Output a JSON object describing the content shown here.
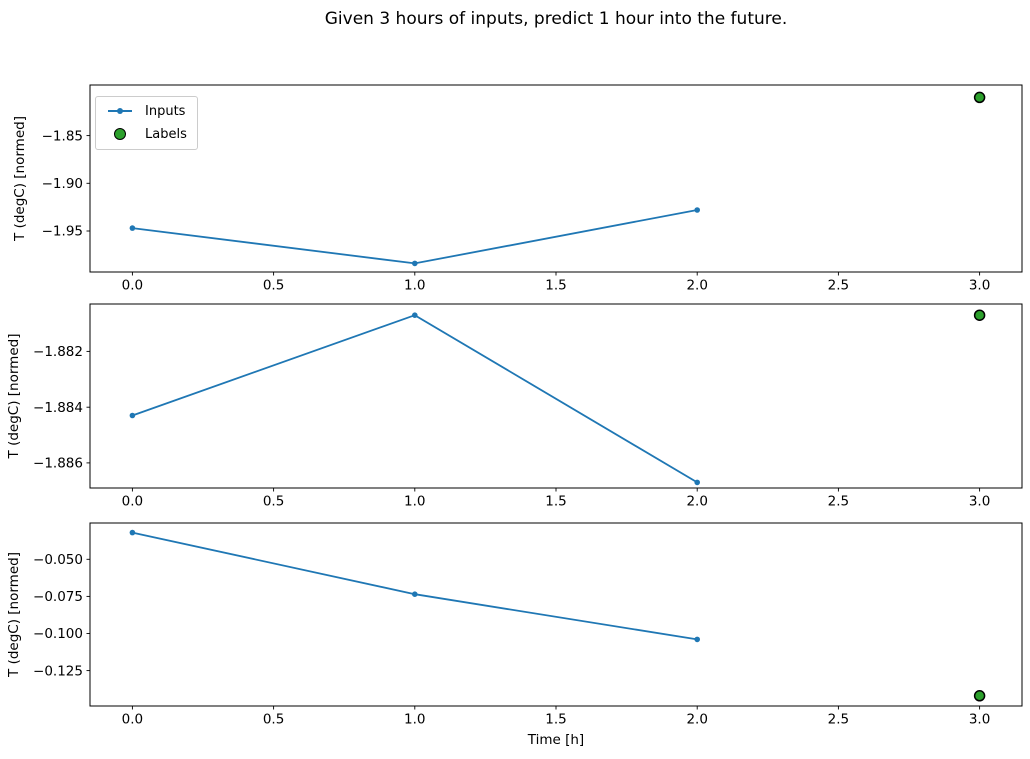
{
  "figure": {
    "title": "Given 3 hours of inputs, predict 1 hour into the future.",
    "background": "#ffffff"
  },
  "legend": {
    "position": "upper left",
    "items": [
      {
        "label": "Inputs",
        "type": "line-with-marker",
        "color": "#1f77b4"
      },
      {
        "label": "Labels",
        "type": "filled-circle",
        "color": "#2ca02c",
        "edge_color": "#000000"
      }
    ]
  },
  "chart_data": [
    {
      "type": "line",
      "title": "",
      "xlabel": "",
      "ylabel": "T (degC) [normed]",
      "grid": false,
      "legend_position": "upper left",
      "xlim": [
        -0.15,
        3.15
      ],
      "ylim": [
        -1.993,
        -1.797
      ],
      "xticks": [
        {
          "value": 0.0,
          "label": "0.0"
        },
        {
          "value": 0.5,
          "label": "0.5"
        },
        {
          "value": 1.0,
          "label": "1.0"
        },
        {
          "value": 1.5,
          "label": "1.5"
        },
        {
          "value": 2.0,
          "label": "2.0"
        },
        {
          "value": 2.5,
          "label": "2.5"
        },
        {
          "value": 3.0,
          "label": "3.0"
        }
      ],
      "yticks": [
        {
          "value": -1.85,
          "label": "−1.85"
        },
        {
          "value": -1.9,
          "label": "−1.90"
        },
        {
          "value": -1.95,
          "label": "−1.95"
        }
      ],
      "series": [
        {
          "name": "Inputs",
          "color": "#1f77b4",
          "marker": "circle",
          "x": [
            0,
            1,
            2
          ],
          "y": [
            -1.947,
            -1.984,
            -1.928
          ]
        }
      ],
      "labels_scatter": {
        "name": "Labels",
        "color": "#2ca02c",
        "edge_color": "#000000",
        "x": [
          3
        ],
        "y": [
          -1.81
        ]
      }
    },
    {
      "type": "line",
      "title": "",
      "xlabel": "",
      "ylabel": "T (degC) [normed]",
      "grid": false,
      "xlim": [
        -0.15,
        3.15
      ],
      "ylim": [
        -1.8869,
        -1.8803
      ],
      "xticks": [
        {
          "value": 0.0,
          "label": "0.0"
        },
        {
          "value": 0.5,
          "label": "0.5"
        },
        {
          "value": 1.0,
          "label": "1.0"
        },
        {
          "value": 1.5,
          "label": "1.5"
        },
        {
          "value": 2.0,
          "label": "2.0"
        },
        {
          "value": 2.5,
          "label": "2.5"
        },
        {
          "value": 3.0,
          "label": "3.0"
        }
      ],
      "yticks": [
        {
          "value": -1.882,
          "label": "−1.882"
        },
        {
          "value": -1.884,
          "label": "−1.884"
        },
        {
          "value": -1.886,
          "label": "−1.886"
        }
      ],
      "series": [
        {
          "name": "Inputs",
          "color": "#1f77b4",
          "marker": "circle",
          "x": [
            0,
            1,
            2
          ],
          "y": [
            -1.8843,
            -1.8807,
            -1.8867
          ]
        }
      ],
      "labels_scatter": {
        "name": "Labels",
        "color": "#2ca02c",
        "edge_color": "#000000",
        "x": [
          3
        ],
        "y": [
          -1.8807
        ]
      }
    },
    {
      "type": "line",
      "title": "",
      "xlabel": "Time [h]",
      "ylabel": "T (degC) [normed]",
      "grid": false,
      "xlim": [
        -0.15,
        3.15
      ],
      "ylim": [
        -0.1489,
        -0.0255
      ],
      "xticks": [
        {
          "value": 0.0,
          "label": "0.0"
        },
        {
          "value": 0.5,
          "label": "0.5"
        },
        {
          "value": 1.0,
          "label": "1.0"
        },
        {
          "value": 1.5,
          "label": "1.5"
        },
        {
          "value": 2.0,
          "label": "2.0"
        },
        {
          "value": 2.5,
          "label": "2.5"
        },
        {
          "value": 3.0,
          "label": "3.0"
        }
      ],
      "yticks": [
        {
          "value": -0.05,
          "label": "−0.050"
        },
        {
          "value": -0.075,
          "label": "−0.075"
        },
        {
          "value": -0.1,
          "label": "−0.100"
        },
        {
          "value": -0.125,
          "label": "−0.125"
        }
      ],
      "series": [
        {
          "name": "Inputs",
          "color": "#1f77b4",
          "marker": "circle",
          "x": [
            0,
            1,
            2
          ],
          "y": [
            -0.032,
            -0.0735,
            -0.104
          ]
        }
      ],
      "labels_scatter": {
        "name": "Labels",
        "color": "#2ca02c",
        "edge_color": "#000000",
        "x": [
          3
        ],
        "y": [
          -0.142
        ]
      }
    }
  ]
}
